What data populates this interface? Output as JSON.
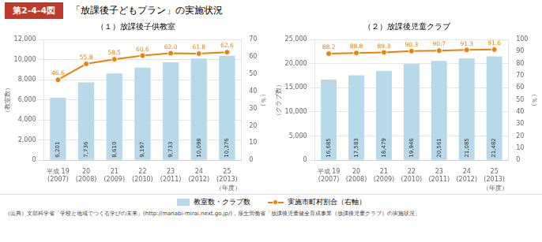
{
  "title": "「放課後子どもプラン」の実施状況",
  "annotations": [
    {
      "text": "第2-4-4図",
      "color": "#c0392b"
    },
    {
      "text": "（出典）文部科学省「学校と地域でつくる学びの未来」(http://manabi-mirai.next.go.jp/)，厚生労働省「放課後児童健全育成事業（放課後児童クラブ）の実施状況」"
    }
  ],
  "legend": "bottom",
  "chart_data": [
    {
      "type": "bar",
      "title": "（１）放課後子供教室",
      "categories": [
        "平成 19\n(2007)",
        "20\n(2008)",
        "21\n(2009)",
        "22\n(2010)",
        "23\n(2011)",
        "24\n(2012)",
        "25\n(2013)"
      ],
      "xlabel": "（年度）",
      "ylabel": "（教室数）",
      "y2label": "（％）",
      "ylim": [
        0,
        12000
      ],
      "yticks": [
        0,
        {
          "value": 2000,
          "label": "2,000"
        },
        {
          "value": 4000,
          "label": "4,000"
        },
        {
          "value": 6000,
          "label": "6,000"
        },
        {
          "value": 8000,
          "label": "8,000"
        },
        {
          "value": 10000,
          "label": "10,000"
        },
        {
          "value": 12000,
          "label": "12,000"
        }
      ],
      "y2lim": [
        0,
        70
      ],
      "y2ticks": [
        0,
        10,
        20,
        30,
        40,
        50,
        60,
        70
      ],
      "grid": true,
      "data_labels": true,
      "series": [
        {
          "name": "教室数・クラブ数",
          "type": "bar",
          "color": "#b8d9ea",
          "values": [
            6201,
            7736,
            8610,
            9197,
            9733,
            10098,
            10376
          ],
          "value_labels": [
            "6,201",
            "7,736",
            "8,610",
            "9,197",
            "9,733",
            "10,098",
            "10,376"
          ]
        },
        {
          "name": "実施市町村割合（右軸）",
          "type": "line",
          "axis": "y2",
          "color": "#e8820a",
          "marker": "circle",
          "values": [
            46.6,
            55.8,
            58.5,
            60.6,
            62.0,
            61.8,
            62.6
          ],
          "value_labels": [
            "46.6",
            "55.8",
            "58.5",
            "60.6",
            "62.0",
            "61.8",
            "62.6"
          ]
        }
      ]
    },
    {
      "type": "bar",
      "title": "（２）放課後児童クラブ",
      "categories": [
        "平成 19\n(2007)",
        "20\n(2008)",
        "21\n(2009)",
        "22\n(2010)",
        "23\n(2011)",
        "24\n(2012)",
        "25\n(2013)"
      ],
      "xlabel": "（年度）",
      "ylabel": "（クラブ数）",
      "y2label": "（％）",
      "ylim": [
        0,
        25000
      ],
      "yticks": [
        0,
        {
          "value": 5000,
          "label": "5,000"
        },
        {
          "value": 10000,
          "label": "10,000"
        },
        {
          "value": 15000,
          "label": "15,000"
        },
        {
          "value": 20000,
          "label": "20,000"
        },
        {
          "value": 25000,
          "label": "25,000"
        }
      ],
      "y2lim": [
        0,
        100
      ],
      "y2ticks": [
        0,
        10,
        20,
        30,
        40,
        50,
        60,
        70,
        80,
        90,
        100
      ],
      "grid": true,
      "data_labels": true,
      "series": [
        {
          "name": "教室数・クラブ数",
          "type": "bar",
          "color": "#b8d9ea",
          "values": [
            16685,
            17583,
            18479,
            19946,
            20561,
            21085,
            21482
          ],
          "value_labels": [
            "16,685",
            "17,583",
            "18,479",
            "19,946",
            "20,561",
            "21,085",
            "21,482"
          ]
        },
        {
          "name": "実施市町村割合（右軸）",
          "type": "line",
          "axis": "y2",
          "color": "#e8820a",
          "marker": "circle",
          "values": [
            88.2,
            88.8,
            89.3,
            90.3,
            90.7,
            91.3,
            91.6
          ],
          "value_labels": [
            "88.2",
            "88.8",
            "89.3",
            "90.3",
            "90.7",
            "91.3",
            "91.6"
          ]
        }
      ]
    }
  ]
}
